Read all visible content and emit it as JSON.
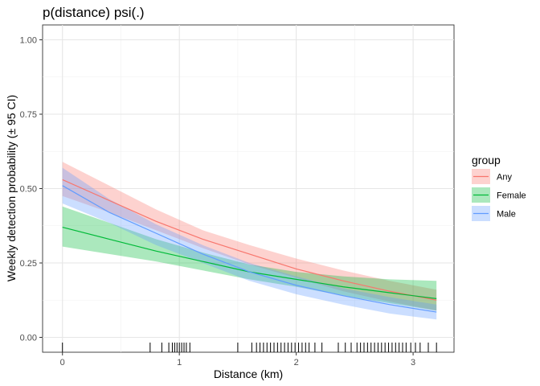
{
  "chart_data": {
    "type": "line",
    "title": "p(distance) psi(.)",
    "xlabel": "Distance (km)",
    "ylabel": "Weekly detection probability (± 95 CI)",
    "xlim": [
      -0.17,
      3.35
    ],
    "ylim": [
      -0.05,
      1.05
    ],
    "x_ticks": [
      0,
      1,
      2,
      3
    ],
    "x_tick_labels": [
      "0",
      "1",
      "2",
      "3"
    ],
    "y_ticks": [
      0.0,
      0.25,
      0.5,
      0.75,
      1.0
    ],
    "y_tick_labels": [
      "0.00",
      "0.25",
      "0.50",
      "0.75",
      "1.00"
    ],
    "grid": true,
    "legend": {
      "title": "group",
      "position": "right"
    },
    "x": [
      0,
      0.4,
      0.8,
      1.2,
      1.6,
      2.0,
      2.4,
      2.8,
      3.2
    ],
    "series": [
      {
        "name": "Any",
        "color": "#F8766D",
        "values": [
          0.53,
          0.46,
          0.39,
          0.33,
          0.28,
          0.23,
          0.19,
          0.155,
          0.125
        ],
        "lower": [
          0.475,
          0.42,
          0.36,
          0.3,
          0.245,
          0.2,
          0.155,
          0.12,
          0.09
        ],
        "upper": [
          0.59,
          0.51,
          0.43,
          0.36,
          0.31,
          0.265,
          0.225,
          0.19,
          0.16
        ]
      },
      {
        "name": "Female",
        "color": "#00BA38",
        "values": [
          0.37,
          0.33,
          0.29,
          0.255,
          0.22,
          0.195,
          0.17,
          0.15,
          0.13
        ],
        "lower": [
          0.305,
          0.28,
          0.255,
          0.225,
          0.195,
          0.17,
          0.14,
          0.115,
          0.09
        ],
        "upper": [
          0.44,
          0.385,
          0.33,
          0.285,
          0.245,
          0.22,
          0.205,
          0.195,
          0.19
        ]
      },
      {
        "name": "Male",
        "color": "#619CFF",
        "values": [
          0.51,
          0.42,
          0.35,
          0.28,
          0.22,
          0.175,
          0.14,
          0.11,
          0.085
        ],
        "lower": [
          0.45,
          0.385,
          0.31,
          0.25,
          0.19,
          0.145,
          0.11,
          0.08,
          0.06
        ],
        "upper": [
          0.57,
          0.465,
          0.38,
          0.31,
          0.25,
          0.205,
          0.165,
          0.135,
          0.11
        ]
      }
    ],
    "rug_x": [
      0.0,
      0.75,
      0.85,
      0.91,
      0.94,
      0.96,
      0.98,
      1.0,
      1.02,
      1.04,
      1.06,
      1.09,
      1.5,
      1.62,
      1.66,
      1.69,
      1.72,
      1.75,
      1.78,
      1.81,
      1.84,
      1.87,
      1.9,
      1.93,
      1.96,
      1.99,
      2.02,
      2.05,
      2.08,
      2.11,
      2.16,
      2.22,
      2.36,
      2.42,
      2.47,
      2.52,
      2.55,
      2.58,
      2.61,
      2.64,
      2.67,
      2.7,
      2.73,
      2.76,
      2.79,
      2.82,
      2.85,
      2.88,
      2.91,
      2.94,
      2.98,
      3.02,
      3.06,
      3.13,
      3.2
    ]
  }
}
